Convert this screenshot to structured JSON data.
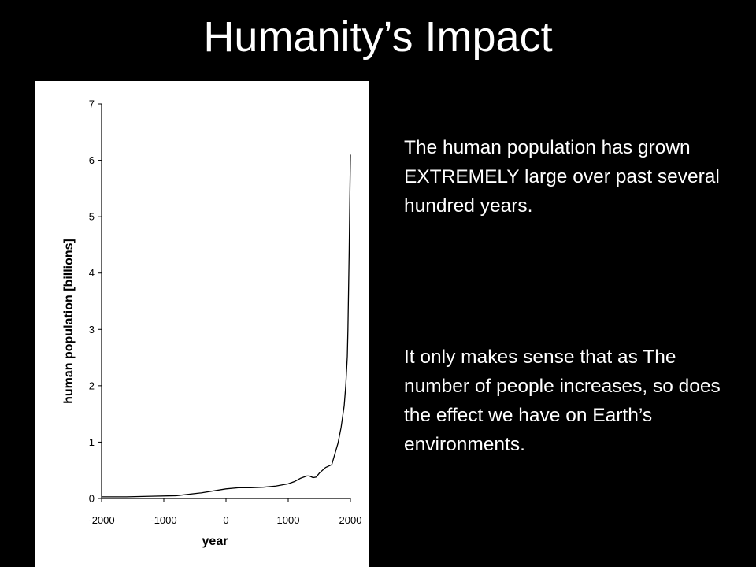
{
  "slide": {
    "title": "Humanity’s Impact",
    "paragraph_1": "The human population has grown EXTREMELY large over past several hundred years.",
    "paragraph_2": "It only makes sense that as The number of people increases, so does the effect we have on Earth’s environments."
  },
  "chart_data": {
    "type": "line",
    "title": "",
    "xlabel": "year",
    "ylabel": "human population [billions]",
    "xlim": [
      -2000,
      2000
    ],
    "ylim": [
      0,
      7
    ],
    "xticks": [
      -2000,
      -1000,
      0,
      1000,
      2000
    ],
    "yticks": [
      0,
      1,
      2,
      3,
      4,
      5,
      6,
      7
    ],
    "grid": false,
    "series": [
      {
        "x": [
          -2000,
          -1600,
          -1200,
          -800,
          -400,
          0,
          200,
          400,
          600,
          800,
          1000,
          1100,
          1200,
          1300,
          1340,
          1400,
          1450,
          1500,
          1600,
          1700,
          1750,
          1800,
          1850,
          1900,
          1925,
          1950,
          1960,
          1970,
          1980,
          1990,
          2000
        ],
        "y": [
          0.03,
          0.03,
          0.04,
          0.05,
          0.1,
          0.17,
          0.19,
          0.19,
          0.2,
          0.22,
          0.26,
          0.3,
          0.36,
          0.4,
          0.4,
          0.37,
          0.38,
          0.45,
          0.55,
          0.6,
          0.79,
          0.98,
          1.26,
          1.65,
          2.0,
          2.52,
          3.0,
          3.7,
          4.4,
          5.3,
          6.1
        ]
      }
    ],
    "colors": {
      "line": "#000000",
      "axis": "#000000",
      "panel_background": "#ffffff"
    }
  }
}
